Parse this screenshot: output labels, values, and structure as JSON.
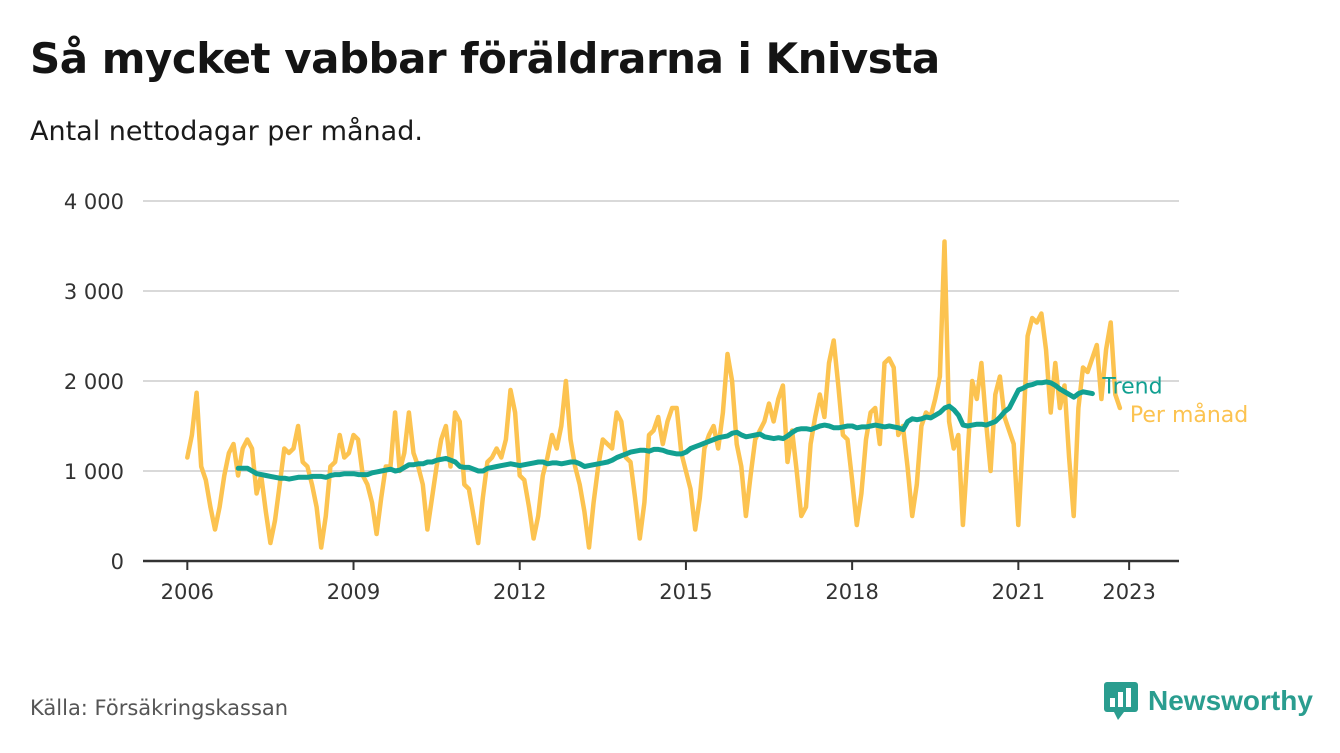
{
  "header": {
    "title": "Så mycket vabbar föräldrarna i Knivsta",
    "subtitle": "Antal nettodagar per månad."
  },
  "footer": {
    "source": "Källa: Försäkringskassan",
    "brand": "Newsworthy"
  },
  "colors": {
    "monthly": "#fcc350",
    "trend": "#12a091",
    "grid": "#d9d9d9",
    "axis": "#333333",
    "brand": "#2a9d8f"
  },
  "chart_data": {
    "type": "line",
    "title": "Så mycket vabbar föräldrarna i Knivsta",
    "subtitle": "Antal nettodagar per månad.",
    "xlabel": "",
    "ylabel": "",
    "ylim": [
      0,
      4000
    ],
    "xlim": [
      2005.2,
      2023.9
    ],
    "yticks": [
      0,
      1000,
      2000,
      3000,
      4000
    ],
    "ytick_labels": [
      "0",
      "1 000",
      "2 000",
      "3 000",
      "4 000"
    ],
    "xticks": [
      2006,
      2009,
      2012,
      2015,
      2018,
      2021,
      2023
    ],
    "xtick_labels": [
      "2006",
      "2009",
      "2012",
      "2015",
      "2018",
      "2021",
      "2023"
    ],
    "grid": true,
    "series": [
      {
        "name": "Per månad",
        "key": "monthly",
        "start": 2006.0,
        "step": 0.0833333,
        "values": [
          1150,
          1400,
          1870,
          1050,
          900,
          600,
          350,
          600,
          950,
          1200,
          1300,
          950,
          1250,
          1350,
          1250,
          750,
          950,
          550,
          200,
          450,
          850,
          1250,
          1200,
          1250,
          1500,
          1100,
          1050,
          850,
          600,
          150,
          500,
          1050,
          1100,
          1400,
          1150,
          1200,
          1400,
          1350,
          950,
          850,
          650,
          300,
          700,
          1050,
          1050,
          1650,
          1000,
          1200,
          1650,
          1200,
          1050,
          850,
          350,
          700,
          1050,
          1350,
          1500,
          1050,
          1650,
          1550,
          850,
          800,
          500,
          200,
          700,
          1100,
          1150,
          1250,
          1150,
          1350,
          1900,
          1650,
          950,
          900,
          600,
          250,
          500,
          950,
          1150,
          1400,
          1250,
          1500,
          2000,
          1350,
          1050,
          850,
          550,
          150,
          650,
          1050,
          1350,
          1300,
          1250,
          1650,
          1550,
          1150,
          1100,
          700,
          250,
          650,
          1400,
          1450,
          1600,
          1300,
          1550,
          1700,
          1700,
          1200,
          1000,
          800,
          350,
          700,
          1250,
          1400,
          1500,
          1250,
          1650,
          2300,
          2000,
          1300,
          1050,
          500,
          950,
          1350,
          1450,
          1550,
          1750,
          1550,
          1800,
          1950,
          1100,
          1450,
          1000,
          500,
          600,
          1300,
          1600,
          1850,
          1600,
          2200,
          2450,
          1950,
          1400,
          1350,
          900,
          400,
          750,
          1350,
          1650,
          1700,
          1300,
          2200,
          2250,
          2150,
          1400,
          1500,
          1050,
          500,
          850,
          1500,
          1650,
          1600,
          1800,
          2050,
          3550,
          1550,
          1250,
          1400,
          400,
          1200,
          2000,
          1800,
          2200,
          1550,
          1000,
          1850,
          2050,
          1600,
          1450,
          1300,
          400,
          1400,
          2500,
          2700,
          2650,
          2750,
          2350,
          1650,
          2200,
          1700,
          1950,
          1150,
          500,
          1700,
          2150,
          2100,
          2250,
          2400,
          1800,
          2350,
          2650,
          1850,
          1700
        ]
      },
      {
        "name": "Trend",
        "key": "trend",
        "start": 2006.92,
        "step": 0.0833333,
        "values": [
          1030,
          1030,
          1030,
          1000,
          970,
          960,
          950,
          940,
          930,
          920,
          920,
          910,
          920,
          930,
          930,
          930,
          940,
          940,
          940,
          930,
          950,
          960,
          960,
          970,
          970,
          970,
          960,
          960,
          960,
          980,
          990,
          1000,
          1010,
          1020,
          1000,
          1010,
          1040,
          1070,
          1070,
          1080,
          1080,
          1100,
          1100,
          1120,
          1130,
          1140,
          1120,
          1100,
          1050,
          1040,
          1040,
          1020,
          1000,
          1000,
          1030,
          1040,
          1050,
          1060,
          1070,
          1080,
          1070,
          1060,
          1070,
          1080,
          1090,
          1100,
          1100,
          1080,
          1090,
          1090,
          1080,
          1090,
          1100,
          1100,
          1080,
          1050,
          1060,
          1070,
          1080,
          1090,
          1100,
          1120,
          1150,
          1170,
          1190,
          1210,
          1220,
          1230,
          1230,
          1220,
          1240,
          1240,
          1230,
          1210,
          1200,
          1190,
          1190,
          1210,
          1250,
          1270,
          1290,
          1310,
          1330,
          1350,
          1370,
          1380,
          1390,
          1420,
          1430,
          1400,
          1380,
          1390,
          1400,
          1410,
          1380,
          1370,
          1360,
          1370,
          1360,
          1390,
          1430,
          1460,
          1470,
          1470,
          1460,
          1480,
          1500,
          1510,
          1500,
          1480,
          1480,
          1490,
          1500,
          1500,
          1480,
          1490,
          1490,
          1500,
          1510,
          1500,
          1490,
          1500,
          1490,
          1480,
          1460,
          1550,
          1580,
          1570,
          1580,
          1600,
          1590,
          1620,
          1650,
          1700,
          1720,
          1680,
          1620,
          1510,
          1500,
          1510,
          1520,
          1520,
          1510,
          1530,
          1550,
          1600,
          1660,
          1700,
          1800,
          1900,
          1920,
          1950,
          1960,
          1980,
          1980,
          1990,
          1980,
          1950,
          1910,
          1880,
          1850,
          1820,
          1860,
          1880,
          1870,
          1860
        ]
      }
    ]
  }
}
